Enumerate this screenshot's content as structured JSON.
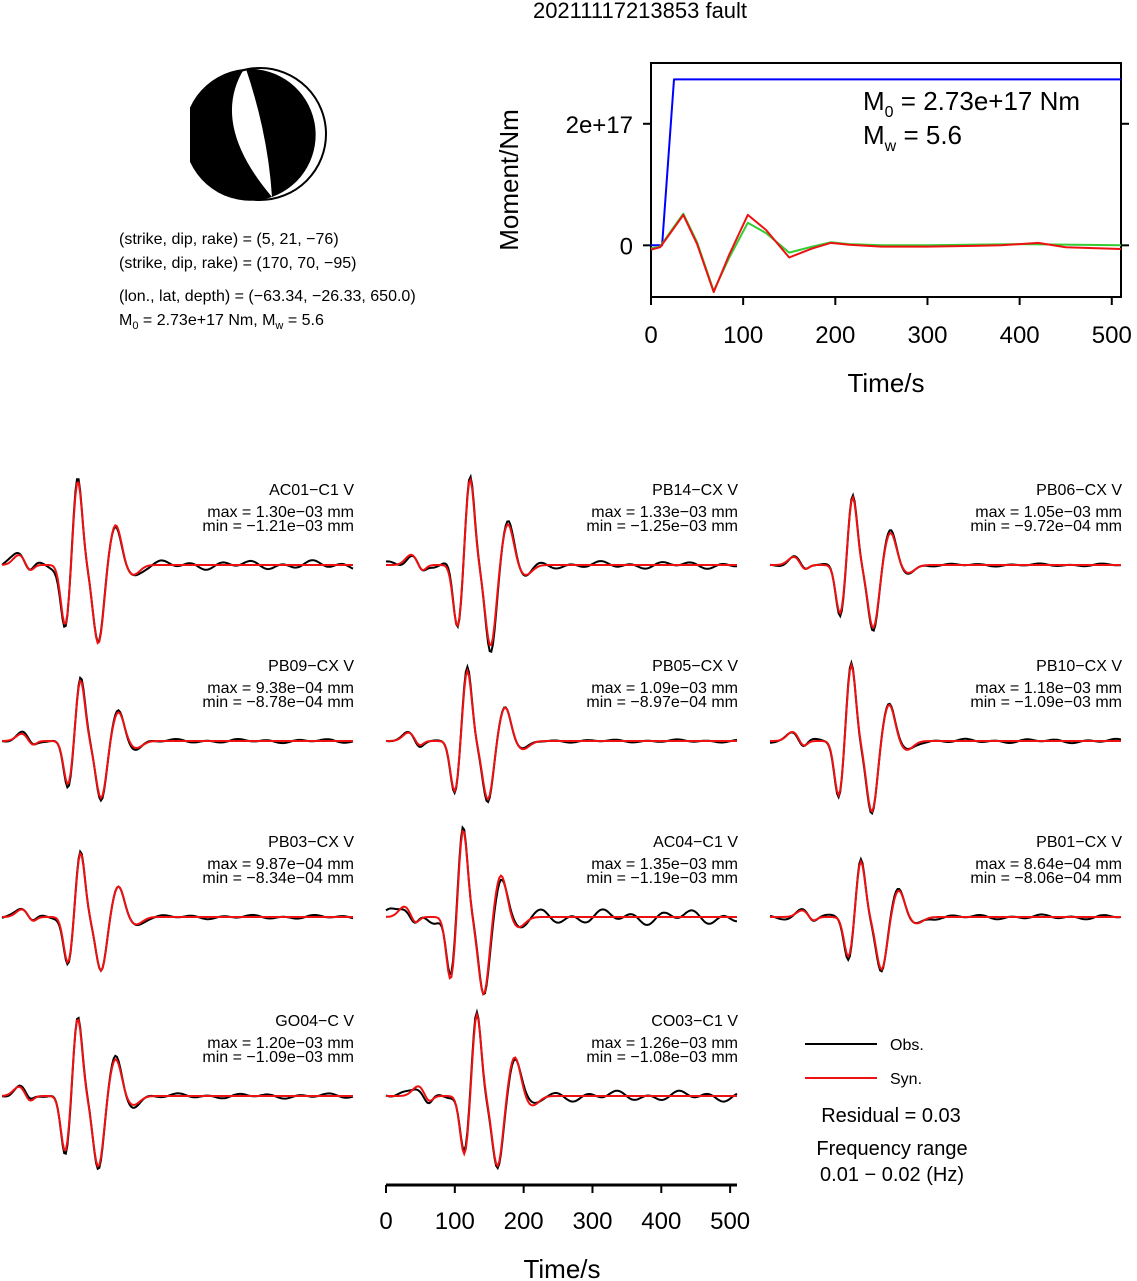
{
  "title": "20211117213853 fault",
  "focal_mechanism": {
    "line1": "(strike, dip, rake) = (5, 21, −76)",
    "line2": "(strike, dip, rake) = (170, 70, −95)",
    "line3": "(lon., lat, depth) = (−63.34, −26.33, 650.0)",
    "m0_prefix": "M",
    "m0_sub": "0",
    "m0_rest": " = 2.73e+17 Nm, M",
    "mw_sub": "w",
    "mw_rest": " = 5.6"
  },
  "chart_data": [
    {
      "type": "line",
      "xlabel": "Time/s",
      "ylabel": "Moment/Nm",
      "xlim": [
        0,
        510
      ],
      "ylim": [
        -8.5e+16,
        3e+17
      ],
      "xticks": [
        0,
        100,
        200,
        300,
        400,
        500
      ],
      "xtick_labels": [
        "0",
        "100",
        "200",
        "300",
        "400",
        "500"
      ],
      "yticks": [
        0,
        2e+17
      ],
      "ytick_labels": [
        "0",
        "2e+17"
      ],
      "annotation": {
        "m0_prefix": "M",
        "m0_sub": "0",
        "m0_rest": " = 2.73e+17 Nm",
        "mw_prefix": "M",
        "mw_sub": "w",
        "mw_rest": " = 5.6"
      },
      "series": [
        {
          "color": "#0000ff",
          "x": [
            0,
            12,
            25,
            510
          ],
          "y": [
            0,
            0,
            2.73e+17,
            2.73e+17
          ]
        },
        {
          "color": "#33cc33",
          "x": [
            0,
            10,
            20,
            35,
            50,
            68,
            85,
            105,
            125,
            150,
            175,
            195,
            215,
            250,
            300,
            400,
            510
          ],
          "y": [
            -5000000000000000.0,
            -2000000000000000.0,
            2e+16,
            5.2e+16,
            5000000000000000.0,
            -7.5e+16,
            -2e+16,
            3.7e+16,
            2e+16,
            -1.2e+16,
            -2000000000000000.0,
            5000000000000000.0,
            2000000000000000.0,
            0.0,
            0.0,
            2000000000000000.0,
            0.0
          ]
        },
        {
          "color": "#ee1111",
          "x": [
            0,
            10,
            20,
            35,
            50,
            68,
            85,
            105,
            125,
            150,
            175,
            195,
            215,
            250,
            300,
            350,
            380,
            420,
            450,
            510
          ],
          "y": [
            -7000000000000000.0,
            -3000000000000000.0,
            1.8e+16,
            5e+16,
            2000000000000000.0,
            -7.7e+16,
            -1.5e+16,
            5e+16,
            2.5e+16,
            -2e+16,
            -5000000000000000.0,
            4000000000000000.0,
            1000000000000000.0,
            -2000000000000000.0,
            -2000000000000000.0,
            -1000000000000000.0,
            0.0,
            4000000000000000.0,
            -3000000000000000.0,
            -6000000000000000.0
          ]
        }
      ]
    },
    {
      "type": "line",
      "xlabel": "Time/s",
      "xlim": [
        0,
        510
      ],
      "xticks": [
        0,
        100,
        200,
        300,
        400,
        500
      ],
      "xtick_labels": [
        "0",
        "100",
        "200",
        "300",
        "400",
        "500"
      ],
      "legend": {
        "obs": "Obs.",
        "syn": "Syn."
      },
      "residual": "Residual = 0.03",
      "frequency_label": "Frequency range",
      "frequency_value": "0.01 − 0.02 (Hz)",
      "stations": [
        {
          "name": "AC01−C1 V",
          "max": "max = 1.30e−03 mm",
          "min": "min = −1.21e−03 mm",
          "peak": 1.3,
          "trough": -1.21,
          "tshift": 0,
          "obs_extra": 0.5
        },
        {
          "name": "PB14−CX V",
          "max": "max = 1.33e−03 mm",
          "min": "min = −1.25e−03 mm",
          "peak": 1.33,
          "trough": -1.25,
          "tshift": 12,
          "obs_extra": 0.4
        },
        {
          "name": "PB06−CX V",
          "max": "max = 1.05e−03 mm",
          "min": "min = −9.72e−04 mm",
          "peak": 1.05,
          "trough": -0.97,
          "tshift": 10,
          "obs_extra": 0.2
        },
        {
          "name": "PB09−CX V",
          "max": "max = 9.38e−04 mm",
          "min": "min = −8.78e−04 mm",
          "peak": 0.94,
          "trough": -0.88,
          "tshift": 4,
          "obs_extra": 0.3
        },
        {
          "name": "PB05−CX V",
          "max": "max = 1.09e−03 mm",
          "min": "min = −8.97e−04 mm",
          "peak": 1.09,
          "trough": -0.9,
          "tshift": 8,
          "obs_extra": 0.2
        },
        {
          "name": "PB10−CX V",
          "max": "max = 1.18e−03 mm",
          "min": "min = −1.09e−03 mm",
          "peak": 1.18,
          "trough": -1.09,
          "tshift": 8,
          "obs_extra": 0.25
        },
        {
          "name": "PB03−CX V",
          "max": "max = 9.87e−04 mm",
          "min": "min = −8.34e−04 mm",
          "peak": 0.99,
          "trough": -0.83,
          "tshift": 4,
          "obs_extra": 0.3
        },
        {
          "name": "AC04−C1 V",
          "max": "max = 1.35e−03 mm",
          "min": "min = −1.19e−03 mm",
          "peak": 1.35,
          "trough": -1.19,
          "tshift": 2,
          "obs_extra": 0.8
        },
        {
          "name": "PB01−CX V",
          "max": "max = 8.64e−04 mm",
          "min": "min = −8.06e−04 mm",
          "peak": 0.86,
          "trough": -0.81,
          "tshift": 22,
          "obs_extra": 0.4
        },
        {
          "name": "GO04−C V",
          "max": "max = 1.20e−03 mm",
          "min": "min = −1.09e−03 mm",
          "peak": 1.2,
          "trough": -1.09,
          "tshift": 0,
          "obs_extra": 0.3
        },
        {
          "name": "CO03−C1 V",
          "max": "max = 1.26e−03 mm",
          "min": "min = −1.08e−03 mm",
          "peak": 1.26,
          "trough": -1.08,
          "tshift": 22,
          "obs_extra": 0.6
        }
      ]
    }
  ]
}
